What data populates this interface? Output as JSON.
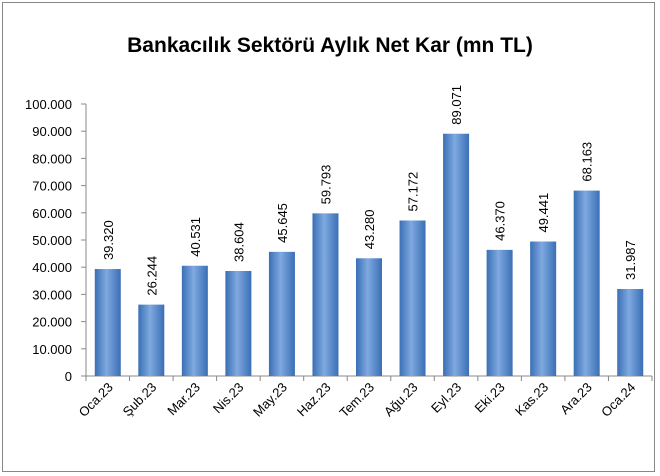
{
  "chart_data": {
    "type": "bar",
    "title": "Bankacılık Sektörü Aylık Net Kar  (mn TL)",
    "categories": [
      "Oca.23",
      "Şub.23",
      "Mar.23",
      "Nis.23",
      "May.23",
      "Haz.23",
      "Tem.23",
      "Ağu.23",
      "Eyl.23",
      "Eki.23",
      "Kas.23",
      "Ara.23",
      "Oca.24"
    ],
    "values": [
      39320,
      26244,
      40531,
      38604,
      45645,
      59793,
      43280,
      57172,
      89071,
      46370,
      49441,
      68163,
      31987
    ],
    "value_labels": [
      "39.320",
      "26.244",
      "40.531",
      "38.604",
      "45.645",
      "59.793",
      "43.280",
      "57.172",
      "89.071",
      "46.370",
      "49.441",
      "68.163",
      "31.987"
    ],
    "color": "#3a6fb5",
    "ylim": [
      0,
      100000
    ],
    "yticks": [
      0,
      {
        "value": 10000,
        "label": "10.000"
      },
      {
        "value": 20000,
        "label": "20.000"
      },
      {
        "value": 30000,
        "label": "30.000"
      },
      {
        "value": 40000,
        "label": "40.000"
      },
      {
        "value": 50000,
        "label": "50.000"
      },
      {
        "value": 60000,
        "label": "60.000"
      },
      {
        "value": 70000,
        "label": "70.000"
      },
      {
        "value": 80000,
        "label": "80.000"
      },
      {
        "value": 90000,
        "label": "90.000"
      },
      {
        "value": 100000,
        "label": "100.000"
      }
    ],
    "grid": false
  }
}
